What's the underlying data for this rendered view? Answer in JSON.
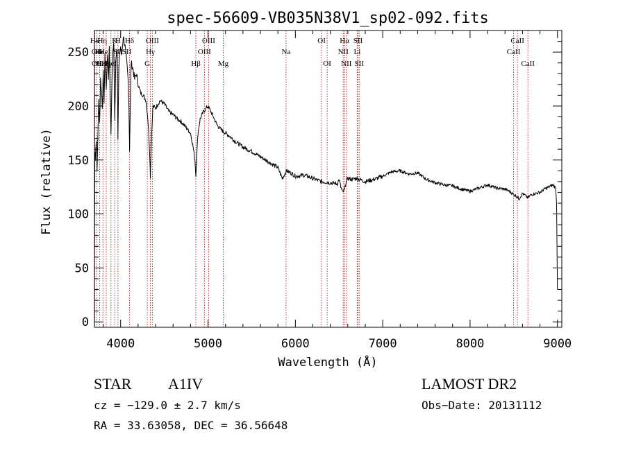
{
  "chart_data": {
    "type": "line",
    "title": "spec-56609-VB035N38V1_sp02-092.fits",
    "xlabel": "Wavelength (Å)",
    "ylabel": "Flux (relative)",
    "xlim": [
      3700,
      9050
    ],
    "ylim": [
      -5,
      270
    ],
    "xticks": [
      4000,
      5000,
      6000,
      7000,
      8000,
      9000
    ],
    "yticks": [
      0,
      50,
      100,
      150,
      200,
      250
    ],
    "grid": false,
    "line_color": "#000000",
    "series": [
      {
        "x": [
          3700,
          3705,
          3710,
          3720,
          3730,
          3740,
          3750,
          3760,
          3770,
          3780,
          3790,
          3800,
          3810,
          3820,
          3835,
          3850,
          3860,
          3870,
          3880,
          3889,
          3895,
          3905,
          3920,
          3933,
          3945,
          3960,
          3969,
          3980,
          3990,
          4000,
          4010,
          4030,
          4050,
          4070,
          4085,
          4095,
          4102,
          4110,
          4120,
          4140,
          4160,
          4180,
          4200,
          4230,
          4260,
          4290,
          4310,
          4325,
          4335,
          4340,
          4345,
          4355,
          4370,
          4400,
          4450,
          4500,
          4550,
          4600,
          4650,
          4700,
          4750,
          4800,
          4830,
          4850,
          4861,
          4870,
          4885,
          4910,
          4950,
          5000,
          5050,
          5100,
          5150,
          5200,
          5250,
          5300,
          5400,
          5500,
          5600,
          5700,
          5800,
          5850,
          5900,
          5950,
          6000,
          6100,
          6200,
          6300,
          6400,
          6480,
          6500,
          6520,
          6540,
          6563,
          6580,
          6600,
          6650,
          6700,
          6800,
          6900,
          7000,
          7100,
          7200,
          7300,
          7400,
          7500,
          7600,
          7700,
          7800,
          7900,
          8000,
          8100,
          8200,
          8300,
          8400,
          8450,
          8500,
          8540,
          8560,
          8600,
          8662,
          8700,
          8800,
          8850,
          8900,
          8950,
          8980,
          8990,
          9000
        ],
        "y": [
          55,
          160,
          150,
          170,
          140,
          175,
          205,
          185,
          225,
          215,
          200,
          230,
          205,
          245,
          215,
          250,
          225,
          255,
          210,
          175,
          200,
          240,
          260,
          185,
          245,
          255,
          170,
          235,
          250,
          255,
          245,
          265,
          255,
          240,
          225,
          200,
          160,
          200,
          240,
          235,
          225,
          230,
          220,
          212,
          210,
          205,
          190,
          170,
          150,
          135,
          150,
          175,
          200,
          198,
          205,
          202,
          195,
          192,
          188,
          185,
          180,
          175,
          162,
          150,
          135,
          152,
          175,
          188,
          195,
          200,
          192,
          183,
          178,
          175,
          172,
          168,
          162,
          158,
          153,
          148,
          143,
          133,
          140,
          138,
          135,
          136,
          133,
          130,
          129,
          128,
          132,
          125,
          120,
          122,
          130,
          133,
          132,
          133,
          130,
          132,
          135,
          139,
          140,
          137,
          138,
          132,
          129,
          127,
          126,
          123,
          121,
          124,
          127,
          124,
          123,
          121,
          118,
          116,
          114,
          119,
          115,
          118,
          120,
          123,
          125,
          127,
          124,
          110,
          30
        ]
      }
    ],
    "line_labels": [
      {
        "x": 3704,
        "row": 1,
        "text": "Hθ"
      },
      {
        "x": 3727,
        "row": 2,
        "text": "OII"
      },
      {
        "x": 3729,
        "row": 3,
        "text": "OII"
      },
      {
        "x": 3760,
        "row": 2,
        "text": "Hε"
      },
      {
        "x": 3770,
        "row": 3,
        "text": "Hε"
      },
      {
        "x": 3790,
        "row": 1,
        "text": "Hη"
      },
      {
        "x": 3820,
        "row": 2,
        "text": "HeI"
      },
      {
        "x": 3835,
        "row": 3,
        "text": "Hη"
      },
      {
        "x": 3889,
        "row": 3,
        "text": "HeI"
      },
      {
        "x": 3933,
        "row": 1,
        "text": "K"
      },
      {
        "x": 3969,
        "row": 1,
        "text": "H"
      },
      {
        "x": 3968,
        "row": 2,
        "text": "SII"
      },
      {
        "x": 4070,
        "row": 2,
        "text": "SII"
      },
      {
        "x": 4102,
        "row": 1,
        "text": "Hδ"
      },
      {
        "x": 4340,
        "row": 2,
        "text": "Hγ"
      },
      {
        "x": 4363,
        "row": 1,
        "text": "OIII"
      },
      {
        "x": 4305,
        "row": 3,
        "text": "G"
      },
      {
        "x": 4861,
        "row": 3,
        "text": "Hβ"
      },
      {
        "x": 4959,
        "row": 2,
        "text": "OIII"
      },
      {
        "x": 5007,
        "row": 1,
        "text": "OIII"
      },
      {
        "x": 5175,
        "row": 3,
        "text": "Mg"
      },
      {
        "x": 5893,
        "row": 2,
        "text": "Na"
      },
      {
        "x": 6300,
        "row": 1,
        "text": "OI"
      },
      {
        "x": 6364,
        "row": 3,
        "text": "OI"
      },
      {
        "x": 6548,
        "row": 2,
        "text": "NII"
      },
      {
        "x": 6563,
        "row": 1,
        "text": "Hα"
      },
      {
        "x": 6584,
        "row": 3,
        "text": "NII"
      },
      {
        "x": 6708,
        "row": 2,
        "text": "Li"
      },
      {
        "x": 6717,
        "row": 1,
        "text": "SII"
      },
      {
        "x": 6731,
        "row": 3,
        "text": "SII"
      },
      {
        "x": 8498,
        "row": 2,
        "text": "CaII"
      },
      {
        "x": 8542,
        "row": 1,
        "text": "CaII"
      },
      {
        "x": 8662,
        "row": 3,
        "text": "CaII"
      }
    ],
    "marker_lines": [
      3704,
      3727,
      3760,
      3798,
      3835,
      3889,
      3933,
      3969,
      4102,
      4305,
      4340,
      4363,
      4861,
      4959,
      5007,
      5175,
      5893,
      6300,
      6364,
      6548,
      6563,
      6584,
      6708,
      6717,
      6731,
      8498,
      8542,
      8662
    ]
  },
  "info": {
    "object_class": "STAR",
    "subclass": "A1IV",
    "survey": "LAMOST DR2",
    "redshift": "cz = −129.0 ± 2.7 km/s",
    "obs_date": "Obs−Date: 20131112",
    "coords": "RA =  33.63058, DEC =  36.56648"
  }
}
